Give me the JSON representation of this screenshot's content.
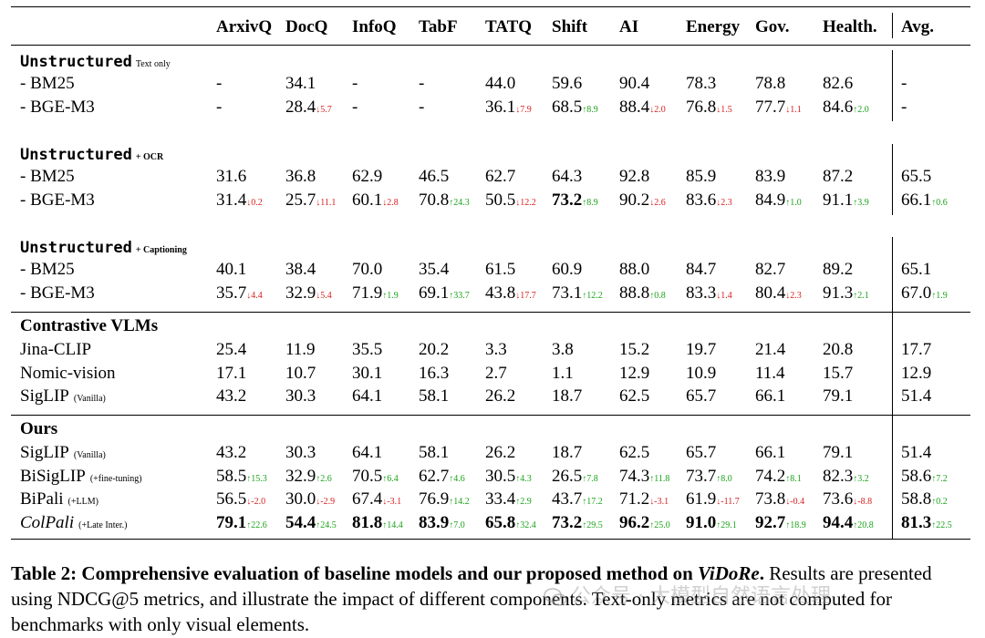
{
  "columns": [
    "ArxivQ",
    "DocQ",
    "InfoQ",
    "TabF",
    "TATQ",
    "Shift",
    "AI",
    "Energy",
    "Gov.",
    "Health.",
    "Avg."
  ],
  "sections": [
    {
      "title": "Unstructured",
      "note": "Text only",
      "style": "mono",
      "rows": [
        {
          "label": "- BM25",
          "cells": [
            [
              "-"
            ],
            [
              "34.1"
            ],
            [
              "-"
            ],
            [
              "-"
            ],
            [
              "44.0"
            ],
            [
              "59.6"
            ],
            [
              "90.4"
            ],
            [
              "78.3"
            ],
            [
              "78.8"
            ],
            [
              "82.6"
            ],
            [
              "-"
            ]
          ]
        },
        {
          "label": "- BGE-M3",
          "cells": [
            [
              "-"
            ],
            [
              "28.4",
              "↓5.7",
              "dn"
            ],
            [
              "-"
            ],
            [
              "-"
            ],
            [
              "36.1",
              "↓7.9",
              "dn"
            ],
            [
              "68.5",
              "↑8.9",
              "up"
            ],
            [
              "88.4",
              "↓2.0",
              "dn"
            ],
            [
              "76.8",
              "↓1.5",
              "dn"
            ],
            [
              "77.7",
              "↓1.1",
              "dn"
            ],
            [
              "84.6",
              "↑2.0",
              "up"
            ],
            [
              "-"
            ]
          ]
        }
      ]
    },
    {
      "title": "Unstructured",
      "note": "+ OCR",
      "style": "mono",
      "rows": [
        {
          "label": "- BM25",
          "cells": [
            [
              "31.6"
            ],
            [
              "36.8"
            ],
            [
              "62.9"
            ],
            [
              "46.5"
            ],
            [
              "62.7"
            ],
            [
              "64.3"
            ],
            [
              "92.8"
            ],
            [
              "85.9"
            ],
            [
              "83.9"
            ],
            [
              "87.2"
            ],
            [
              "65.5"
            ]
          ]
        },
        {
          "label": "- BGE-M3",
          "cells": [
            [
              "31.4",
              "↓0.2",
              "dn"
            ],
            [
              "25.7",
              "↓11.1",
              "dn"
            ],
            [
              "60.1",
              "↓2.8",
              "dn"
            ],
            [
              "70.8",
              "↑24.3",
              "up"
            ],
            [
              "50.5",
              "↓12.2",
              "dn"
            ],
            [
              "73.2",
              "↑8.9",
              "up",
              "b"
            ],
            [
              "90.2",
              "↓2.6",
              "dn"
            ],
            [
              "83.6",
              "↓2.3",
              "dn"
            ],
            [
              "84.9",
              "↑1.0",
              "up"
            ],
            [
              "91.1",
              "↑3.9",
              "up"
            ],
            [
              "66.1",
              "↑0.6",
              "up"
            ]
          ]
        }
      ]
    },
    {
      "title": "Unstructured",
      "note": "+ Captioning",
      "style": "mono",
      "rows": [
        {
          "label": "- BM25",
          "cells": [
            [
              "40.1"
            ],
            [
              "38.4"
            ],
            [
              "70.0"
            ],
            [
              "35.4"
            ],
            [
              "61.5"
            ],
            [
              "60.9"
            ],
            [
              "88.0"
            ],
            [
              "84.7"
            ],
            [
              "82.7"
            ],
            [
              "89.2"
            ],
            [
              "65.1"
            ]
          ]
        },
        {
          "label": "- BGE-M3",
          "cells": [
            [
              "35.7",
              "↓4.4",
              "dn"
            ],
            [
              "32.9",
              "↓5.4",
              "dn"
            ],
            [
              "71.9",
              "↑1.9",
              "up"
            ],
            [
              "69.1",
              "↑33.7",
              "up"
            ],
            [
              "43.8",
              "↓17.7",
              "dn"
            ],
            [
              "73.1",
              "↑12.2",
              "up"
            ],
            [
              "88.8",
              "↑0.8",
              "up"
            ],
            [
              "83.3",
              "↓1.4",
              "dn"
            ],
            [
              "80.4",
              "↓2.3",
              "dn"
            ],
            [
              "91.3",
              "↑2.1",
              "up"
            ],
            [
              "67.0",
              "↑1.9",
              "up"
            ]
          ]
        }
      ]
    },
    {
      "title": "Contrastive VLMs",
      "note": "",
      "style": "bold",
      "rows": [
        {
          "label": "Jina-CLIP",
          "cells": [
            [
              "25.4"
            ],
            [
              "11.9"
            ],
            [
              "35.5"
            ],
            [
              "20.2"
            ],
            [
              "3.3"
            ],
            [
              "3.8"
            ],
            [
              "15.2"
            ],
            [
              "19.7"
            ],
            [
              "21.4"
            ],
            [
              "20.8"
            ],
            [
              "17.7"
            ]
          ]
        },
        {
          "label": "Nomic-vision",
          "cells": [
            [
              "17.1"
            ],
            [
              "10.7"
            ],
            [
              "30.1"
            ],
            [
              "16.3"
            ],
            [
              "2.7"
            ],
            [
              "1.1"
            ],
            [
              "12.9"
            ],
            [
              "10.9"
            ],
            [
              "11.4"
            ],
            [
              "15.7"
            ],
            [
              "12.9"
            ]
          ]
        },
        {
          "label": "SigLIP",
          "sub": "(Vanilla)",
          "cells": [
            [
              "43.2"
            ],
            [
              "30.3"
            ],
            [
              "64.1"
            ],
            [
              "58.1"
            ],
            [
              "26.2"
            ],
            [
              "18.7"
            ],
            [
              "62.5"
            ],
            [
              "65.7"
            ],
            [
              "66.1"
            ],
            [
              "79.1"
            ],
            [
              "51.4"
            ]
          ]
        }
      ]
    },
    {
      "title": "Ours",
      "note": "",
      "style": "bold",
      "rows": [
        {
          "label": "SigLIP",
          "sub": "(Vanilla)",
          "cells": [
            [
              "43.2"
            ],
            [
              "30.3"
            ],
            [
              "64.1"
            ],
            [
              "58.1"
            ],
            [
              "26.2"
            ],
            [
              "18.7"
            ],
            [
              "62.5"
            ],
            [
              "65.7"
            ],
            [
              "66.1"
            ],
            [
              "79.1"
            ],
            [
              "51.4"
            ]
          ]
        },
        {
          "label": "BiSigLIP",
          "sub": "(+fine-tuning)",
          "cells": [
            [
              "58.5",
              "↑15.3",
              "up"
            ],
            [
              "32.9",
              "↑2.6",
              "up"
            ],
            [
              "70.5",
              "↑6.4",
              "up"
            ],
            [
              "62.7",
              "↑4.6",
              "up"
            ],
            [
              "30.5",
              "↑4.3",
              "up"
            ],
            [
              "26.5",
              "↑7.8",
              "up"
            ],
            [
              "74.3",
              "↑11.8",
              "up"
            ],
            [
              "73.7",
              "↑8.0",
              "up"
            ],
            [
              "74.2",
              "↑8.1",
              "up"
            ],
            [
              "82.3",
              "↑3.2",
              "up"
            ],
            [
              "58.6",
              "↑7.2",
              "up"
            ]
          ]
        },
        {
          "label": "BiPali",
          "sub": "(+LLM)",
          "cells": [
            [
              "56.5",
              "↓-2.0",
              "dn"
            ],
            [
              "30.0",
              "↓-2.9",
              "dn"
            ],
            [
              "67.4",
              "↓-3.1",
              "dn"
            ],
            [
              "76.9",
              "↑14.2",
              "up"
            ],
            [
              "33.4",
              "↑2.9",
              "up"
            ],
            [
              "43.7",
              "↑17.2",
              "up"
            ],
            [
              "71.2",
              "↓-3.1",
              "dn"
            ],
            [
              "61.9",
              "↓-11.7",
              "dn"
            ],
            [
              "73.8",
              "↓-0.4",
              "dn"
            ],
            [
              "73.6",
              "↓-8.8",
              "dn"
            ],
            [
              "58.8",
              "↑0.2",
              "up"
            ]
          ]
        },
        {
          "label": "ColPali",
          "sub": "(+Late Inter.)",
          "italic": true,
          "cells": [
            [
              "79.1",
              "↑22.6",
              "up",
              "b"
            ],
            [
              "54.4",
              "↑24.5",
              "up",
              "b"
            ],
            [
              "81.8",
              "↑14.4",
              "up",
              "b"
            ],
            [
              "83.9",
              "↑7.0",
              "up",
              "b"
            ],
            [
              "65.8",
              "↑32.4",
              "up",
              "b"
            ],
            [
              "73.2",
              "↑29.5",
              "up",
              "b"
            ],
            [
              "96.2",
              "↑25.0",
              "up",
              "b"
            ],
            [
              "91.0",
              "↑29.1",
              "up",
              "b"
            ],
            [
              "92.7",
              "↑18.9",
              "up",
              "b"
            ],
            [
              "94.4",
              "↑20.8",
              "up",
              "b"
            ],
            [
              "81.3",
              "↑22.5",
              "up",
              "b"
            ]
          ]
        }
      ]
    }
  ],
  "caption": {
    "label": "Table 2:",
    "bold_text": "Comprehensive evaluation of baseline models and our proposed method on ",
    "bold_italic": "ViDoRe",
    "bold_end": ".",
    "rest": " Results are presented using NDCG@5 metrics, and illustrate the impact of different components. Text-only metrics are not computed for benchmarks with only visual elements."
  },
  "watermark": "公众号 · 大模型自然语言处理"
}
